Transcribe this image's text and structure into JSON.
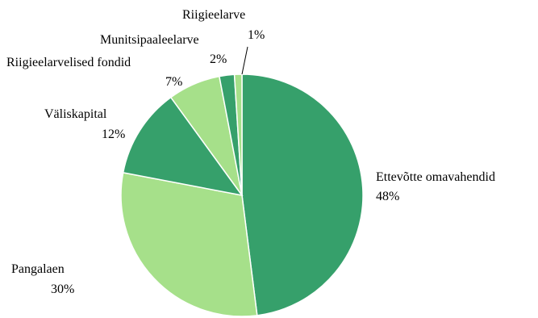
{
  "chart_data": {
    "type": "pie",
    "title": "",
    "start_angle_deg": 0,
    "direction": "clockwise",
    "slices": [
      {
        "label": "Ettevõtte omavahendid",
        "value": 48,
        "value_text": "48%",
        "color": "#36a06b"
      },
      {
        "label": "Pangalaen",
        "value": 30,
        "value_text": "30%",
        "color": "#a6e08a"
      },
      {
        "label": "Väliskapital",
        "value": 12,
        "value_text": "12%",
        "color": "#36a06b"
      },
      {
        "label": "Riigieelarvelised fondid",
        "value": 7,
        "value_text": "7%",
        "color": "#a6e08a"
      },
      {
        "label": "Munitsipaaleelarve",
        "value": 2,
        "value_text": "2%",
        "color": "#36a06b"
      },
      {
        "label": "Riigieelarve",
        "value": 1,
        "value_text": "1%",
        "color": "#a6e08a"
      }
    ]
  }
}
